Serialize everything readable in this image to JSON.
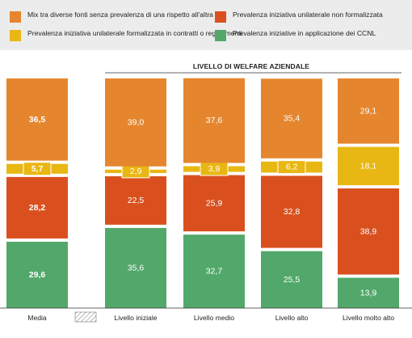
{
  "chart_data": {
    "type": "bar",
    "stacked": true,
    "group_header": "LIVELLO DI WELFARE AZIENDALE",
    "categories": [
      "Media",
      "Livello iniziale",
      "Livello medio",
      "Livello alto",
      "Livello molto alto"
    ],
    "series": [
      {
        "name": "Prevalenza iniziative in applicazione dei CCNL",
        "color": "#52a86a",
        "values": [
          29.6,
          35.6,
          32.7,
          25.5,
          13.9
        ],
        "labels": [
          "29,6",
          "35,6",
          "32,7",
          "25,5",
          "13,9"
        ]
      },
      {
        "name": "Prevalenza iniziativa unilaterale non formalizzata",
        "color": "#d9501e",
        "values": [
          28.2,
          22.5,
          25.9,
          32.8,
          38.9
        ],
        "labels": [
          "28,2",
          "22,5",
          "25,9",
          "32,8",
          "38,9"
        ]
      },
      {
        "name": "Prevalenza iniziativa unilaterale formalizzata in contratti o regolamenti",
        "color": "#e9b713",
        "values": [
          5.7,
          2.9,
          3.9,
          6.2,
          18.1
        ],
        "labels": [
          "5,7",
          "2,9",
          "3,9",
          "6,2",
          "18,1"
        ]
      },
      {
        "name": "Mix tra diverse fonti senza prevalenza di una rispetto all'altra",
        "color": "#e5862e",
        "values": [
          36.5,
          39.0,
          37.6,
          35.4,
          29.1
        ],
        "labels": [
          "36,5",
          "39,0",
          "37,6",
          "35,4",
          "29,1"
        ]
      }
    ],
    "ylim": [
      0,
      100
    ]
  },
  "legend": [
    {
      "label": "Mix tra diverse fonti senza prevalenza di una rispetto all'altra",
      "color": "#e5862e"
    },
    {
      "label": "Prevalenza iniziativa unilaterale non formalizzata",
      "color": "#d9501e"
    },
    {
      "label": "Prevalenza iniziativa unilaterale formalizzata in contratti o regolamenti",
      "color": "#e9b713"
    },
    {
      "label": "Prevalenza iniziative in applicazione dei CCNL",
      "color": "#52a86a"
    }
  ]
}
